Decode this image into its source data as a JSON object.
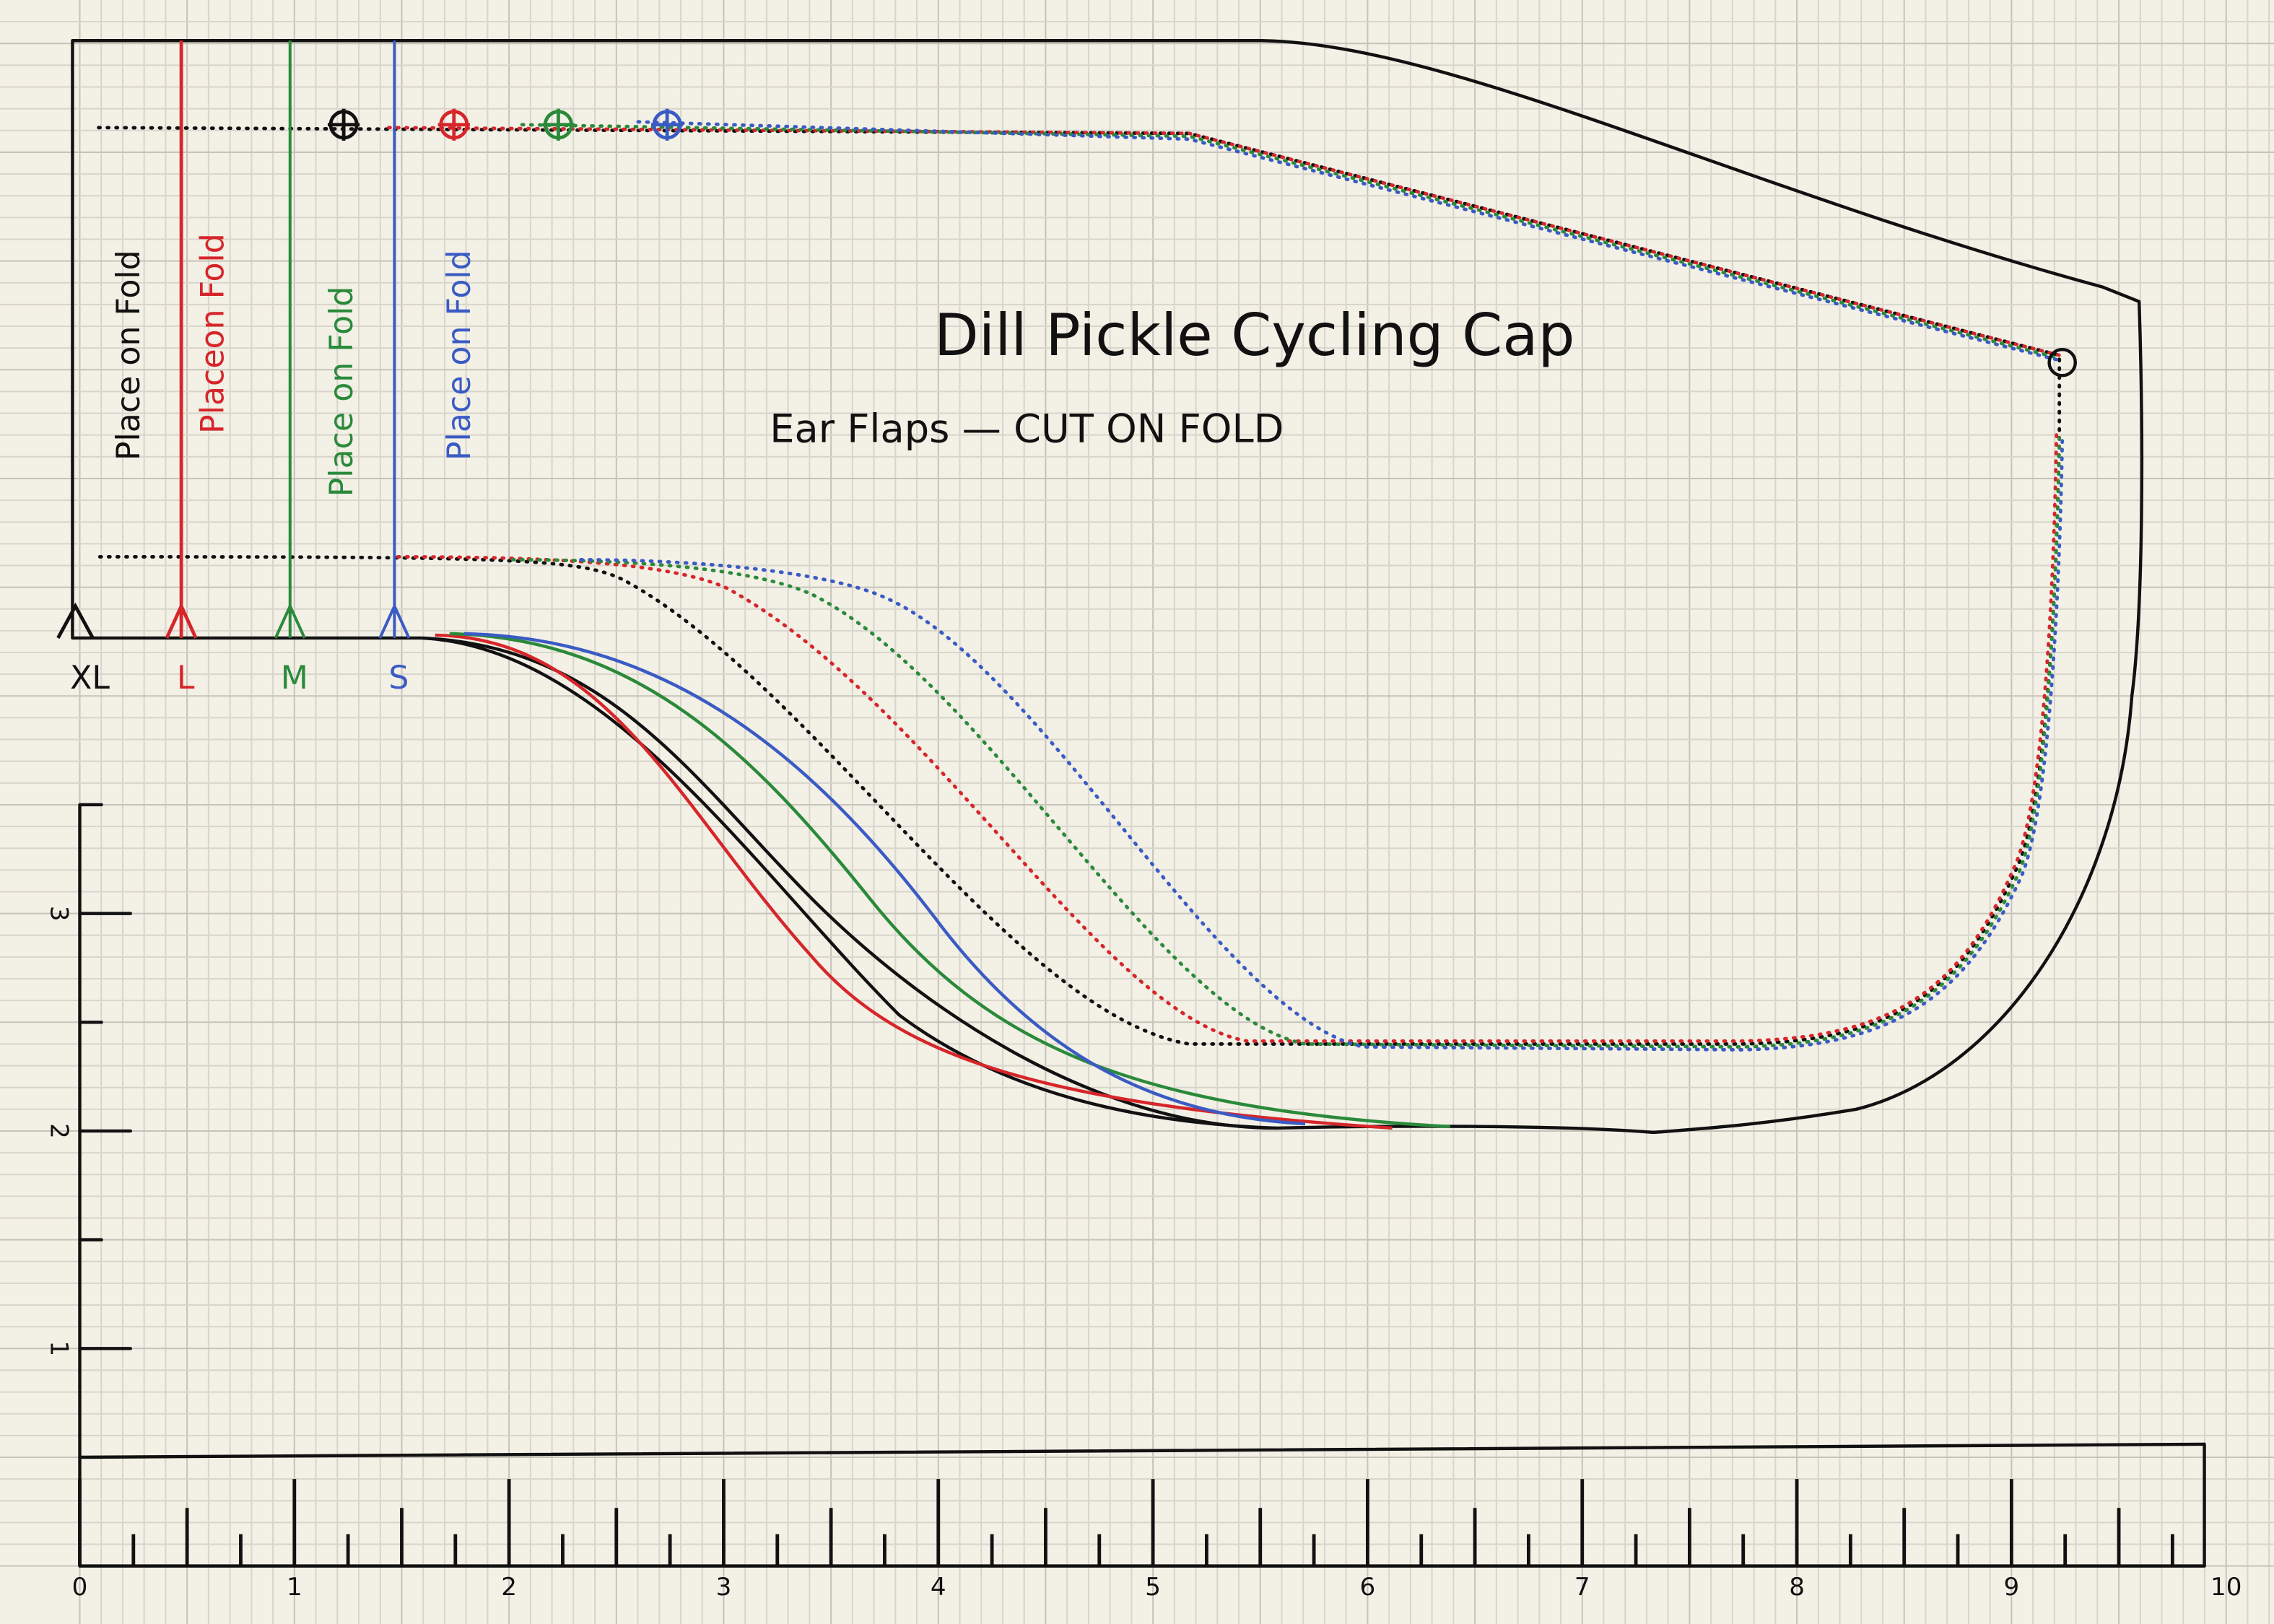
{
  "title": "Dill Pickle Cycling Cap",
  "subtitle": "Ear Flaps — CUT ON FOLD",
  "fold_labels": [
    "Place on Fold",
    "Placeon Fold",
    "Place on Fold",
    "Place on Fold"
  ],
  "sizes": [
    "XL",
    "L",
    "M",
    "S"
  ],
  "ruler": {
    "bottom": [
      0,
      1,
      2,
      3,
      4,
      5,
      6,
      7,
      8,
      9,
      10
    ],
    "left": [
      3,
      2,
      1
    ]
  }
}
